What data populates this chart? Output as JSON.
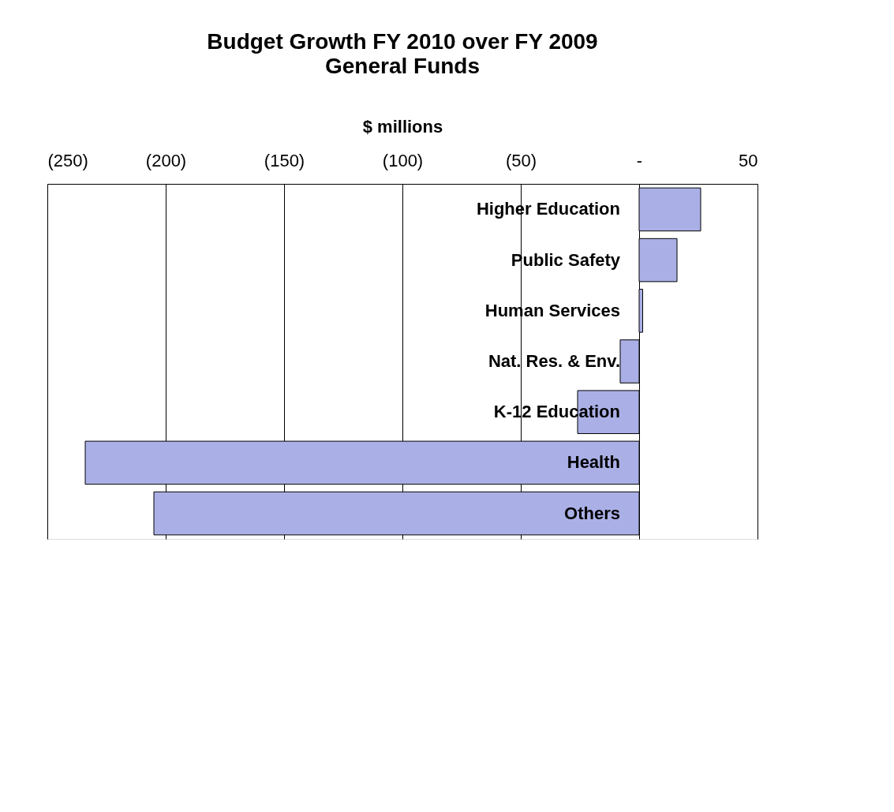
{
  "chart_data": {
    "type": "bar",
    "orientation": "horizontal",
    "title": "Budget Growth FY 2010 over FY 2009",
    "subtitle": "General Funds",
    "xlabel": "$ millions",
    "categories": [
      "Higher Education",
      "Public Safety",
      "Human Services",
      "Nat. Res. & Env.",
      "K-12 Education",
      "Health",
      "Others"
    ],
    "values": [
      26,
      16,
      1.5,
      -8,
      -26,
      -234,
      -205
    ],
    "color": "#aab0e6",
    "xlim": [
      -250,
      50
    ],
    "xticks": [
      {
        "value": -250,
        "label": "(250)"
      },
      {
        "value": -200,
        "label": "(200)"
      },
      {
        "value": -150,
        "label": "(150)"
      },
      {
        "value": -100,
        "label": "(100)"
      },
      {
        "value": -50,
        "label": "(50)"
      },
      {
        "value": 0,
        "label": "-"
      },
      50
    ],
    "grid": "x"
  }
}
